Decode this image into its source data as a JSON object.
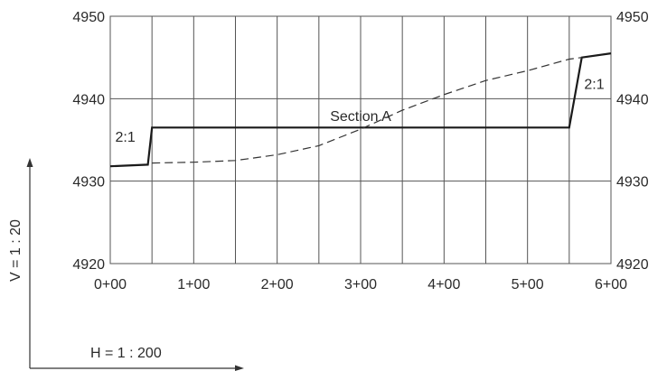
{
  "chart_data": {
    "type": "line",
    "title": "",
    "xlabel": "",
    "ylabel": "",
    "xlim": [
      0,
      6
    ],
    "ylim": [
      4920,
      4950
    ],
    "x_ticks": [
      {
        "value": 0,
        "label": "0+00"
      },
      {
        "value": 1,
        "label": "1+00"
      },
      {
        "value": 2,
        "label": "2+00"
      },
      {
        "value": 3,
        "label": "3+00"
      },
      {
        "value": 4,
        "label": "4+00"
      },
      {
        "value": 5,
        "label": "5+00"
      },
      {
        "value": 6,
        "label": "6+00"
      }
    ],
    "x_grid_step": 0.5,
    "y_ticks": [
      {
        "value": 4920,
        "label": "4920"
      },
      {
        "value": 4930,
        "label": "4930"
      },
      {
        "value": 4940,
        "label": "4940"
      },
      {
        "value": 4950,
        "label": "4950"
      }
    ],
    "y_ticks_both_sides": true,
    "grid": true,
    "legend": "none",
    "series": [
      {
        "style": "solid",
        "x": [
          0,
          0.45,
          0.5,
          5.5,
          5.65,
          6.0
        ],
        "y": [
          4931.8,
          4932.0,
          4936.5,
          4936.5,
          4945.0,
          4945.5
        ]
      },
      {
        "style": "dashed",
        "x": [
          0.5,
          1.0,
          1.5,
          2.0,
          2.5,
          3.0,
          3.5,
          4.0,
          4.5,
          5.0,
          5.5,
          5.65
        ],
        "y": [
          4932.2,
          4932.3,
          4932.5,
          4933.2,
          4934.3,
          4936.3,
          4938.6,
          4940.5,
          4942.2,
          4943.4,
          4944.8,
          4945.0
        ]
      }
    ],
    "annotations": [
      {
        "text": "Section A",
        "x": 3.0,
        "y": 4937.3
      },
      {
        "text": "2:1",
        "x": 0.18,
        "y": 4934.8
      },
      {
        "text": "2:1",
        "x": 5.8,
        "y": 4941.2
      }
    ],
    "scales": {
      "vertical": "V = 1 : 20",
      "horizontal": "H = 1 : 200"
    }
  }
}
